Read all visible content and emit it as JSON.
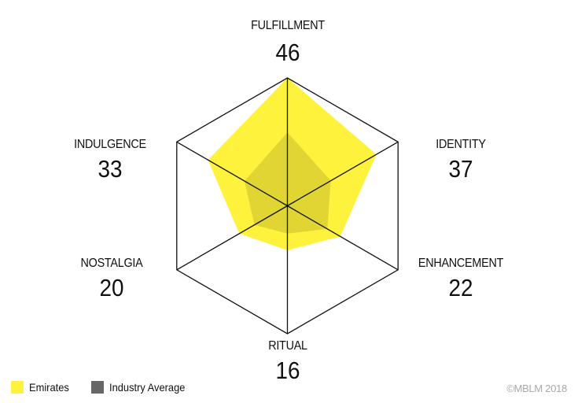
{
  "chart_data": {
    "type": "radar",
    "title": "",
    "axes": [
      "FULFILLMENT",
      "IDENTITY",
      "ENHANCEMENT",
      "RITUAL",
      "NOSTALGIA",
      "INDULGENCE"
    ],
    "scale_max": 46,
    "series": [
      {
        "name": "Emirates",
        "color": "#fef23c",
        "values": [
          46,
          37,
          22,
          16,
          20,
          33
        ]
      },
      {
        "name": "Industry Average",
        "color": "#666666",
        "values": [
          26.4,
          18,
          16.6,
          10,
          13.7,
          17.8
        ]
      }
    ],
    "displayed_values": {
      "FULFILLMENT": "46",
      "IDENTITY": "37",
      "ENHANCEMENT": "22",
      "RITUAL": "16",
      "NOSTALGIA": "20",
      "INDULGENCE": "33"
    },
    "grid": "single outer hexagon with spokes",
    "legend_position": "bottom-left"
  },
  "labels": {
    "fulfillment": {
      "name": "FULFILLMENT",
      "value": "46"
    },
    "identity": {
      "name": "IDENTITY",
      "value": "37"
    },
    "enhancement": {
      "name": "ENHANCEMENT",
      "value": "22"
    },
    "ritual": {
      "name": "RITUAL",
      "value": "16"
    },
    "nostalgia": {
      "name": "NOSTALGIA",
      "value": "20"
    },
    "indulgence": {
      "name": "INDULGENCE",
      "value": "33"
    }
  },
  "legend": {
    "emirates": {
      "label": "Emirates",
      "color": "#fef23c"
    },
    "industry": {
      "label": "Industry Average",
      "color": "#666666"
    }
  },
  "footer": {
    "copyright": "©MBLM 2018"
  }
}
